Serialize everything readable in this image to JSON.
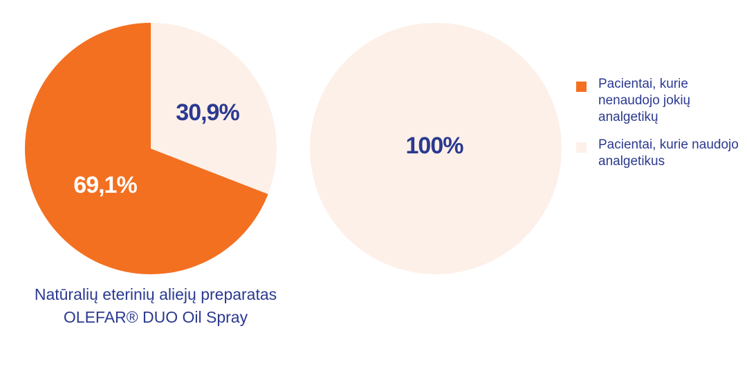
{
  "chart_data": [
    {
      "type": "pie",
      "title": "Natūralių eterinių aliejų preparatas OLEFAR® DUO Oil Spray",
      "categories": [
        "Pacientai, kurie nenaudojo jokių analgetikų",
        "Pacientai, kurie naudojo analgetikus"
      ],
      "values": [
        69.1,
        30.9
      ],
      "value_labels": [
        "69,1%",
        "30,9%"
      ],
      "colors": [
        "#f37021",
        "#fdf0e8"
      ],
      "label_colors": [
        "#ffffff",
        "#2b3990"
      ]
    },
    {
      "type": "pie",
      "values": [
        100
      ],
      "value_labels": [
        "100%"
      ],
      "colors": [
        "#fdf0e8"
      ],
      "label_colors": [
        "#2b3990"
      ]
    }
  ]
}
